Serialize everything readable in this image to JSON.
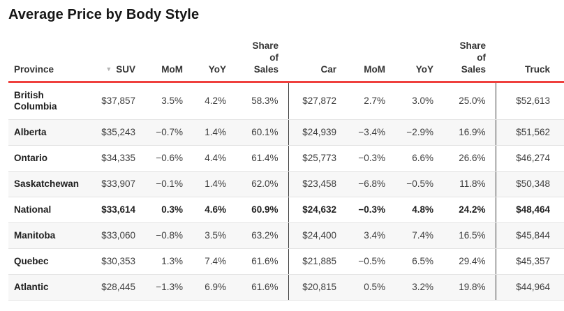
{
  "title": "Average Price by Body Style",
  "colors": {
    "accent_red": "#ef403d",
    "stripe": "#f7f7f7",
    "row_divider": "#e3e3e3",
    "group_divider": "#3a3a3a",
    "sort_icon": "#b3b3b3",
    "header_text": "#333333",
    "body_text": "#3d3d3d"
  },
  "sort_icon_glyph": "▼",
  "chart_data": {
    "type": "table",
    "title": "Average Price by Body Style",
    "columns": [
      {
        "key": "province",
        "label": "Province",
        "group": "left",
        "sorted": false,
        "wrap": false
      },
      {
        "key": "suv",
        "label": "SUV",
        "group": "suv",
        "sorted": true,
        "wrap": false
      },
      {
        "key": "suv_mom",
        "label": "MoM",
        "group": "suv",
        "sorted": false,
        "wrap": false
      },
      {
        "key": "suv_yoy",
        "label": "YoY",
        "group": "suv",
        "sorted": false,
        "wrap": false
      },
      {
        "key": "suv_share",
        "label": "Share of Sales",
        "group": "suv",
        "sorted": false,
        "wrap": true
      },
      {
        "key": "car",
        "label": "Car",
        "group": "car",
        "sorted": false,
        "wrap": false
      },
      {
        "key": "car_mom",
        "label": "MoM",
        "group": "car",
        "sorted": false,
        "wrap": false
      },
      {
        "key": "car_yoy",
        "label": "YoY",
        "group": "car",
        "sorted": false,
        "wrap": false
      },
      {
        "key": "car_share",
        "label": "Share of Sales",
        "group": "car",
        "sorted": false,
        "wrap": true
      },
      {
        "key": "truck",
        "label": "Truck",
        "group": "truck",
        "sorted": false,
        "wrap": false
      }
    ],
    "rows": [
      {
        "province": "British Columbia",
        "suv": "$37,857",
        "suv_mom": "3.5%",
        "suv_yoy": "4.2%",
        "suv_share": "58.3%",
        "car": "$27,872",
        "car_mom": "2.7%",
        "car_yoy": "3.0%",
        "car_share": "25.0%",
        "truck": "$52,613",
        "bold": false
      },
      {
        "province": "Alberta",
        "suv": "$35,243",
        "suv_mom": "−0.7%",
        "suv_yoy": "1.4%",
        "suv_share": "60.1%",
        "car": "$24,939",
        "car_mom": "−3.4%",
        "car_yoy": "−2.9%",
        "car_share": "16.9%",
        "truck": "$51,562",
        "bold": false
      },
      {
        "province": "Ontario",
        "suv": "$34,335",
        "suv_mom": "−0.6%",
        "suv_yoy": "4.4%",
        "suv_share": "61.4%",
        "car": "$25,773",
        "car_mom": "−0.3%",
        "car_yoy": "6.6%",
        "car_share": "26.6%",
        "truck": "$46,274",
        "bold": false
      },
      {
        "province": "Saskatchewan",
        "suv": "$33,907",
        "suv_mom": "−0.1%",
        "suv_yoy": "1.4%",
        "suv_share": "62.0%",
        "car": "$23,458",
        "car_mom": "−6.8%",
        "car_yoy": "−0.5%",
        "car_share": "11.8%",
        "truck": "$50,348",
        "bold": false
      },
      {
        "province": "National",
        "suv": "$33,614",
        "suv_mom": "0.3%",
        "suv_yoy": "4.6%",
        "suv_share": "60.9%",
        "car": "$24,632",
        "car_mom": "−0.3%",
        "car_yoy": "4.8%",
        "car_share": "24.2%",
        "truck": "$48,464",
        "bold": true
      },
      {
        "province": "Manitoba",
        "suv": "$33,060",
        "suv_mom": "−0.8%",
        "suv_yoy": "3.5%",
        "suv_share": "63.2%",
        "car": "$24,400",
        "car_mom": "3.4%",
        "car_yoy": "7.4%",
        "car_share": "16.5%",
        "truck": "$45,844",
        "bold": false
      },
      {
        "province": "Quebec",
        "suv": "$30,353",
        "suv_mom": "1.3%",
        "suv_yoy": "7.4%",
        "suv_share": "61.6%",
        "car": "$21,885",
        "car_mom": "−0.5%",
        "car_yoy": "6.5%",
        "car_share": "29.4%",
        "truck": "$45,357",
        "bold": false
      },
      {
        "province": "Atlantic",
        "suv": "$28,445",
        "suv_mom": "−1.3%",
        "suv_yoy": "6.9%",
        "suv_share": "61.6%",
        "car": "$20,815",
        "car_mom": "0.5%",
        "car_yoy": "3.2%",
        "car_share": "19.8%",
        "truck": "$44,964",
        "bold": false
      }
    ]
  }
}
